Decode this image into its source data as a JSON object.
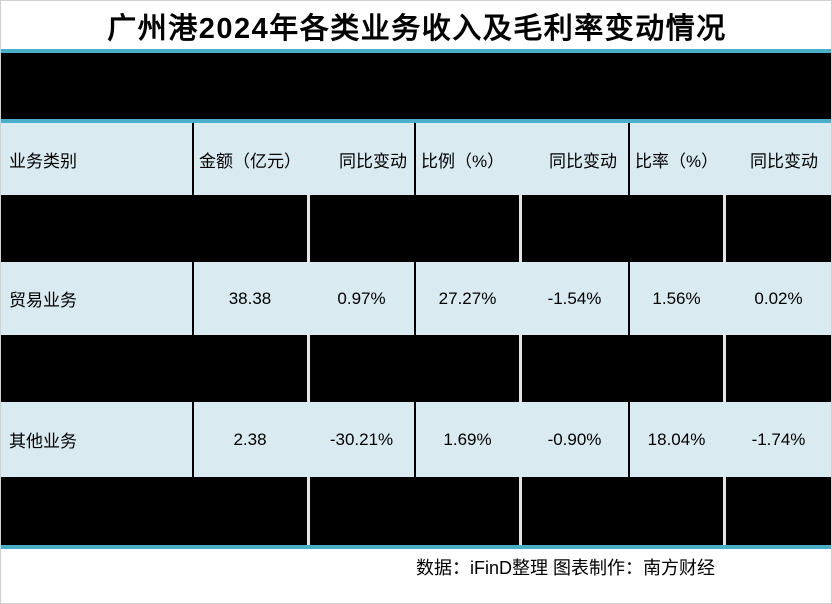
{
  "chart_data": {
    "type": "table",
    "title": "广州港2024年各类业务收入及毛利率变动情况",
    "columns": [
      "业务类别",
      "金额（亿元）",
      "同比变动",
      "比例（%）",
      "同比变动",
      "比率（%）",
      "同比变动"
    ],
    "rows": [
      {
        "redacted": true
      },
      {
        "redacted": false,
        "cells": [
          "贸易业务",
          "38.38",
          "0.97%",
          "27.27%",
          "-1.54%",
          "1.56%",
          "0.02%"
        ]
      },
      {
        "redacted": true
      },
      {
        "redacted": false,
        "cells": [
          "其他业务",
          "2.38",
          "-30.21%",
          "1.69%",
          "-0.90%",
          "18.04%",
          "-1.74%"
        ]
      },
      {
        "redacted": true
      }
    ],
    "column_group_header_redacted": true,
    "source_note": "数据：iFinD整理 图表制作：南方财经"
  },
  "colors": {
    "accent_teal": "#49aec8",
    "row_light_blue": "#d9eaf1",
    "redaction_black": "#000000",
    "background": "#ffffff"
  }
}
